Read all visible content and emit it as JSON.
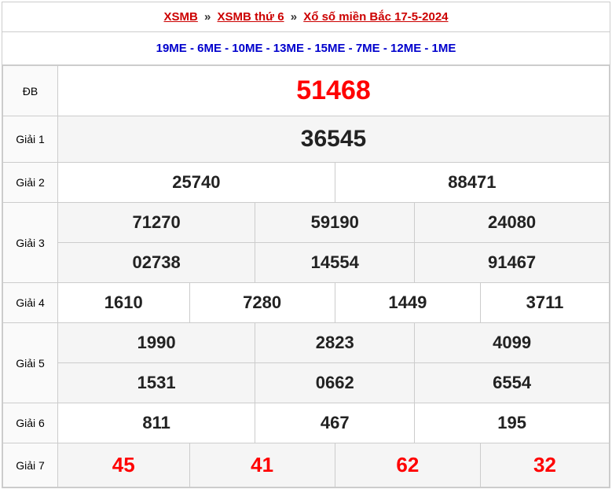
{
  "breadcrumb": {
    "link1": "XSMB",
    "link2": "XSMB thứ 6",
    "link3": "Xổ số miền Bắc 17-5-2024",
    "separator": "»"
  },
  "codes": "19ME - 6ME - 10ME - 13ME - 15ME - 7ME - 12ME - 1ME",
  "prizes": {
    "special": {
      "label": "ĐB",
      "value": "51468"
    },
    "g1": {
      "label": "Giải 1",
      "value": "36545"
    },
    "g2": {
      "label": "Giải 2",
      "values": [
        "25740",
        "88471"
      ]
    },
    "g3": {
      "label": "Giải 3",
      "values": [
        "71270",
        "59190",
        "24080",
        "02738",
        "14554",
        "91467"
      ]
    },
    "g4": {
      "label": "Giải 4",
      "values": [
        "1610",
        "7280",
        "1449",
        "3711"
      ]
    },
    "g5": {
      "label": "Giải 5",
      "values": [
        "1990",
        "2823",
        "4099",
        "1531",
        "0662",
        "6554"
      ]
    },
    "g6": {
      "label": "Giải 6",
      "values": [
        "811",
        "467",
        "195"
      ]
    },
    "g7": {
      "label": "Giải 7",
      "values": [
        "45",
        "41",
        "62",
        "32"
      ]
    }
  },
  "colors": {
    "link": "#cc0000",
    "codes": "#0000cc",
    "special": "#ff0000",
    "border": "#cccccc",
    "alt_bg": "#f5f5f5"
  }
}
